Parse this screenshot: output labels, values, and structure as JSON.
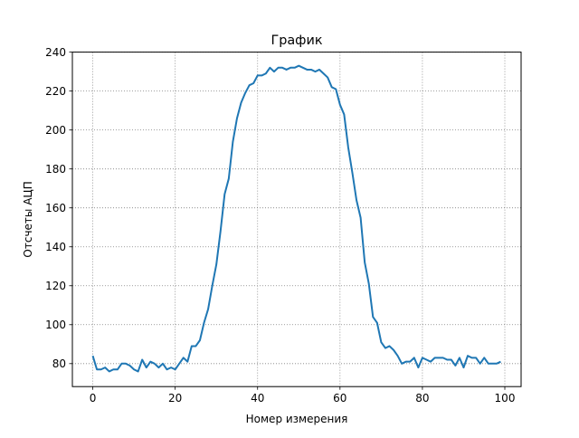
{
  "chart_data": {
    "type": "line",
    "title": "График",
    "xlabel": "Номер измерения",
    "ylabel": "Отсчеты АЦП",
    "xlim": [
      -4.95,
      103.95
    ],
    "ylim": [
      68.2,
      240
    ],
    "grid": true,
    "grid_style": "dotted",
    "legend": "none",
    "line_color": "#1f77b4",
    "x_ticks": [
      0,
      20,
      40,
      60,
      80,
      100
    ],
    "y_ticks": [
      80,
      100,
      120,
      140,
      160,
      180,
      200,
      220,
      240
    ],
    "x": [
      0,
      1,
      2,
      3,
      4,
      5,
      6,
      7,
      8,
      9,
      10,
      11,
      12,
      13,
      14,
      15,
      16,
      17,
      18,
      19,
      20,
      21,
      22,
      23,
      24,
      25,
      26,
      27,
      28,
      29,
      30,
      31,
      32,
      33,
      34,
      35,
      36,
      37,
      38,
      39,
      40,
      41,
      42,
      43,
      44,
      45,
      46,
      47,
      48,
      49,
      50,
      51,
      52,
      53,
      54,
      55,
      56,
      57,
      58,
      59,
      60,
      61,
      62,
      63,
      64,
      65,
      66,
      67,
      68,
      69,
      70,
      71,
      72,
      73,
      74,
      75,
      76,
      77,
      78,
      79,
      80,
      81,
      82,
      83,
      84,
      85,
      86,
      87,
      88,
      89,
      90,
      91,
      92,
      93,
      94,
      95,
      96,
      97,
      98,
      99
    ],
    "series": [
      {
        "values": [
          84,
          77,
          77,
          78,
          76,
          77,
          77,
          80,
          80,
          79,
          77,
          76,
          82,
          78,
          81,
          80,
          78,
          80,
          77,
          78,
          77,
          80,
          83,
          81,
          89,
          89,
          92,
          101,
          108,
          120,
          131,
          148,
          167,
          175,
          194,
          206,
          214,
          219,
          223,
          224,
          228,
          228,
          229,
          232,
          230,
          232,
          232,
          231,
          232,
          232,
          233,
          232,
          231,
          231,
          230,
          231,
          229,
          227,
          222,
          221,
          213,
          208,
          191,
          178,
          164,
          155,
          132,
          121,
          104,
          101,
          91,
          88,
          89,
          87,
          84,
          80,
          81,
          81,
          83,
          78,
          83,
          82,
          81,
          83,
          83,
          83,
          82,
          82,
          79,
          83,
          78,
          84,
          83,
          83,
          80,
          83,
          80,
          80,
          80,
          81
        ]
      }
    ]
  }
}
